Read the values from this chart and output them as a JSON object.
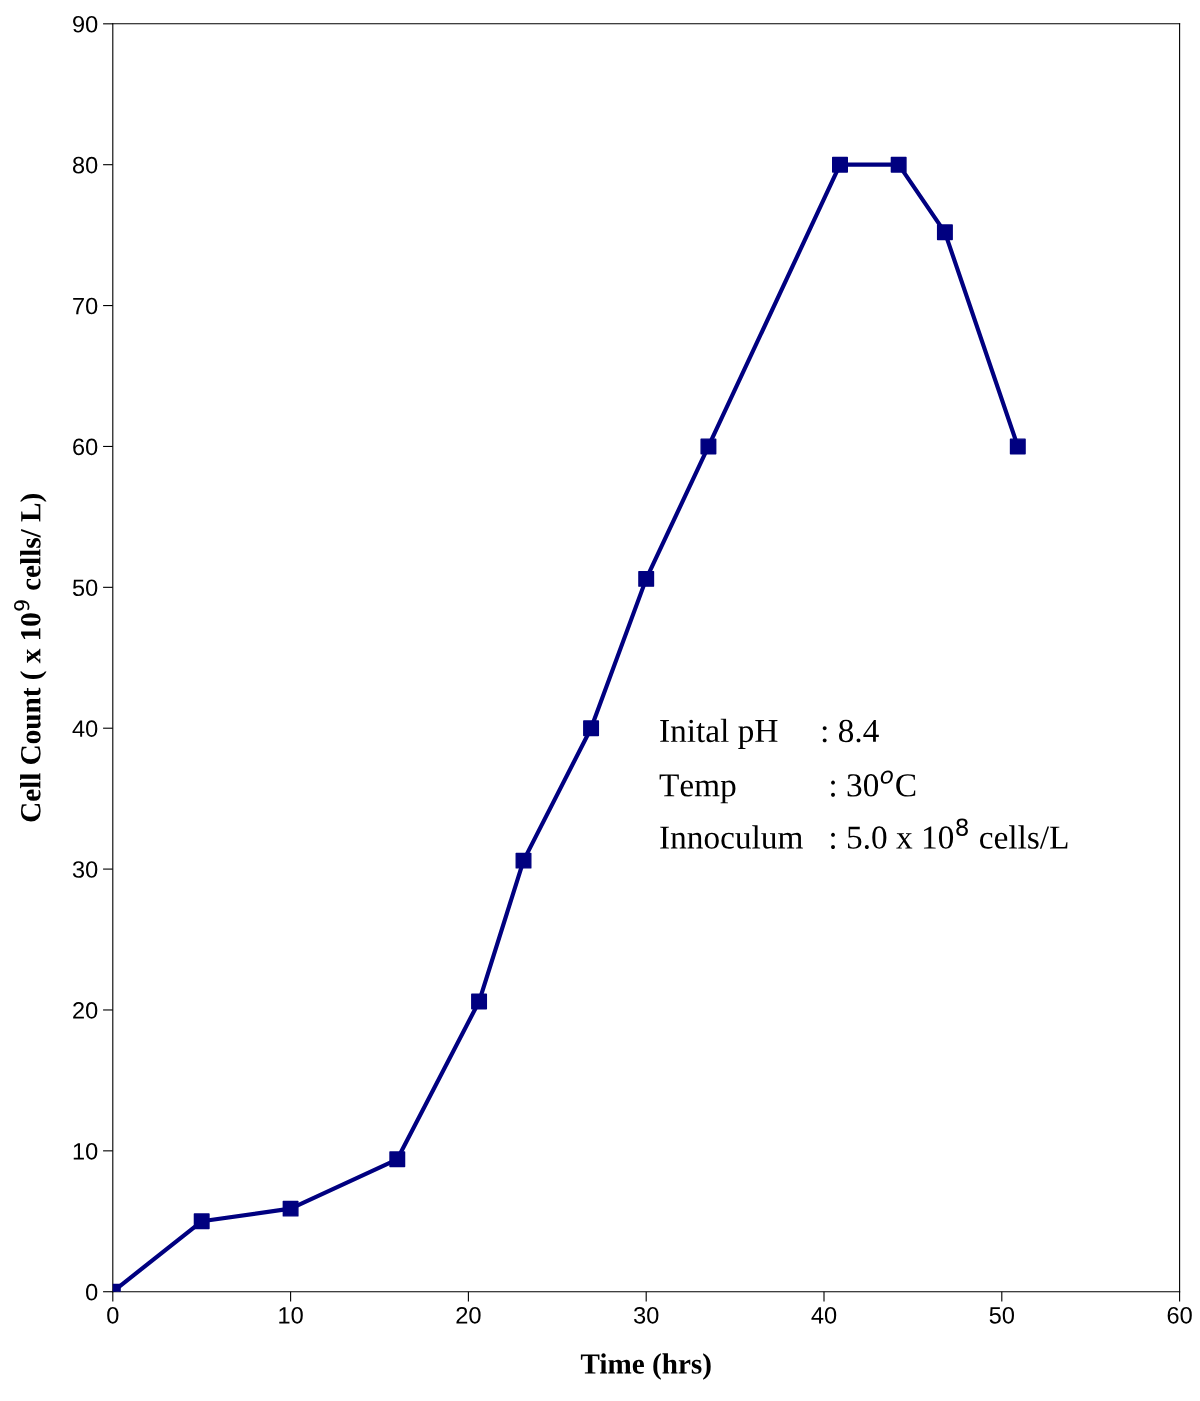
{
  "chart_data": {
    "type": "line",
    "xlabel": "Time (hrs)",
    "ylabel": "Cell Count ( x 10$^{9}$ cells/ L)",
    "x": [
      0,
      5.0,
      10.0,
      16.0,
      20.6,
      23.1,
      26.9,
      30.0,
      33.5,
      40.9,
      44.2,
      46.8,
      50.9
    ],
    "series": [
      {
        "color": "#000080",
        "values": [
          0,
          5.0,
          5.9,
          9.4,
          20.6,
          30.6,
          40.0,
          50.6,
          60.0,
          80.0,
          80.0,
          75.2,
          60.0
        ]
      }
    ],
    "xlim": [
      0,
      60
    ],
    "xticks": [
      0,
      10,
      20,
      30,
      40,
      50,
      60
    ],
    "ylim": [
      0,
      90
    ],
    "yticks": [
      0,
      10,
      20,
      30,
      40,
      50,
      60,
      70,
      80,
      90
    ],
    "marker": "square",
    "line_style": "solid",
    "grid": false,
    "legend": false,
    "annotations": [
      "Inital pH     : 8.4",
      "Temp           : 30$^{o}$C",
      "Innoculum   : 5.0 x 10$^{8}$ cells/L"
    ]
  }
}
